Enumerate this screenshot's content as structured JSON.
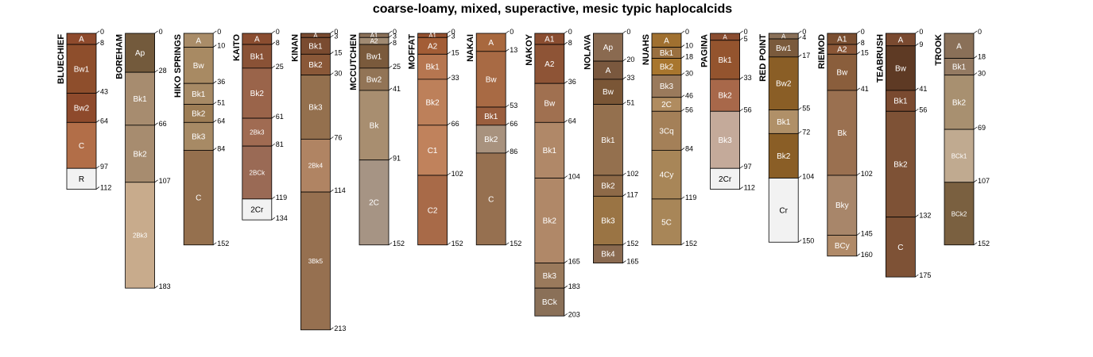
{
  "chart_data": {
    "type": "soil-profile-sketch",
    "title": "coarse-loamy, mixed, superactive, mesic typic haplocalcids",
    "depth_unit": "cm",
    "max_depth": 213,
    "profiles": [
      {
        "name": "BLUECHIEF",
        "horizons": [
          {
            "name": "A",
            "top": 0,
            "bottom": 8,
            "color": "#8e4a2c"
          },
          {
            "name": "Bw1",
            "top": 8,
            "bottom": 43,
            "color": "#8e4e2c"
          },
          {
            "name": "Bw2",
            "top": 43,
            "bottom": 64,
            "color": "#8e4a2c"
          },
          {
            "name": "C",
            "top": 64,
            "bottom": 97,
            "color": "#b26e48"
          },
          {
            "name": "R",
            "top": 97,
            "bottom": 112,
            "color": "#f2f2f2"
          }
        ]
      },
      {
        "name": "BOREHAM",
        "horizons": [
          {
            "name": "Ap",
            "top": 0,
            "bottom": 28,
            "color": "#735a3c"
          },
          {
            "name": "Bk1",
            "top": 28,
            "bottom": 66,
            "color": "#a78c6f"
          },
          {
            "name": "Bk2",
            "top": 66,
            "bottom": 107,
            "color": "#a78c6f"
          },
          {
            "name": "2Bk3",
            "top": 107,
            "bottom": 183,
            "color": "#c8ab8c"
          }
        ]
      },
      {
        "name": "HIKO SPRINGS",
        "horizons": [
          {
            "name": "A",
            "top": 0,
            "bottom": 10,
            "color": "#a98c68"
          },
          {
            "name": "Bw",
            "top": 10,
            "bottom": 36,
            "color": "#a88a63"
          },
          {
            "name": "Bk1",
            "top": 36,
            "bottom": 51,
            "color": "#a78a65"
          },
          {
            "name": "Bk2",
            "top": 51,
            "bottom": 64,
            "color": "#9d7d55"
          },
          {
            "name": "Bk3",
            "top": 64,
            "bottom": 84,
            "color": "#a78a65"
          },
          {
            "name": "C",
            "top": 84,
            "bottom": 152,
            "color": "#95704e"
          }
        ]
      },
      {
        "name": "KAITO",
        "horizons": [
          {
            "name": "A",
            "top": 0,
            "bottom": 8,
            "color": "#8a4d30"
          },
          {
            "name": "Bk1",
            "top": 8,
            "bottom": 25,
            "color": "#8a5236"
          },
          {
            "name": "Bk2",
            "top": 25,
            "bottom": 61,
            "color": "#9a644a"
          },
          {
            "name": "2Bk3",
            "top": 61,
            "bottom": 81,
            "color": "#a06b52"
          },
          {
            "name": "2BCk",
            "top": 81,
            "bottom": 119,
            "color": "#9a6a55"
          },
          {
            "name": "2Cr",
            "top": 119,
            "bottom": 134,
            "color": "#f2f2f2"
          }
        ]
      },
      {
        "name": "KINAN",
        "horizons": [
          {
            "name": "A",
            "top": 0,
            "bottom": 3,
            "color": "#7a4b30"
          },
          {
            "name": "Bk1",
            "top": 3,
            "bottom": 15,
            "color": "#7a4b30"
          },
          {
            "name": "Bk2",
            "top": 15,
            "bottom": 30,
            "color": "#8a5838"
          },
          {
            "name": "Bk3",
            "top": 30,
            "bottom": 76,
            "color": "#94704e"
          },
          {
            "name": "2Bk4",
            "top": 76,
            "bottom": 114,
            "color": "#b08463"
          },
          {
            "name": "3Bk5",
            "top": 114,
            "bottom": 213,
            "color": "#967050"
          }
        ]
      },
      {
        "name": "MCCUTCHEN",
        "horizons": [
          {
            "name": "A1",
            "top": 0,
            "bottom": 3,
            "color": "#8a7058"
          },
          {
            "name": "A2",
            "top": 3,
            "bottom": 8,
            "color": "#a08a72"
          },
          {
            "name": "Bw1",
            "top": 8,
            "bottom": 25,
            "color": "#7a5a3c"
          },
          {
            "name": "Bw2",
            "top": 25,
            "bottom": 41,
            "color": "#927456"
          },
          {
            "name": "Bk",
            "top": 41,
            "bottom": 91,
            "color": "#a88e70"
          },
          {
            "name": "2C",
            "top": 91,
            "bottom": 152,
            "color": "#a69484"
          }
        ]
      },
      {
        "name": "MOFFAT",
        "horizons": [
          {
            "name": "A1",
            "top": 0,
            "bottom": 3,
            "color": "#94502e"
          },
          {
            "name": "A2",
            "top": 3,
            "bottom": 15,
            "color": "#a35d36"
          },
          {
            "name": "Bk1",
            "top": 15,
            "bottom": 33,
            "color": "#b67650"
          },
          {
            "name": "Bk2",
            "top": 33,
            "bottom": 66,
            "color": "#bd805a"
          },
          {
            "name": "C1",
            "top": 66,
            "bottom": 102,
            "color": "#c0825c"
          },
          {
            "name": "C2",
            "top": 102,
            "bottom": 152,
            "color": "#a86a48"
          }
        ]
      },
      {
        "name": "NAKAI",
        "horizons": [
          {
            "name": "A",
            "top": 0,
            "bottom": 13,
            "color": "#a8683e"
          },
          {
            "name": "Bw",
            "top": 13,
            "bottom": 53,
            "color": "#a86a44"
          },
          {
            "name": "Bk1",
            "top": 53,
            "bottom": 66,
            "color": "#9a5e3e"
          },
          {
            "name": "Bk2",
            "top": 66,
            "bottom": 86,
            "color": "#a8927e"
          },
          {
            "name": "C",
            "top": 86,
            "bottom": 152,
            "color": "#967050"
          }
        ]
      },
      {
        "name": "NAKOY",
        "horizons": [
          {
            "name": "A1",
            "top": 0,
            "bottom": 8,
            "color": "#8a4d30"
          },
          {
            "name": "A2",
            "top": 8,
            "bottom": 36,
            "color": "#8e5436"
          },
          {
            "name": "Bw",
            "top": 36,
            "bottom": 64,
            "color": "#a07050"
          },
          {
            "name": "Bk1",
            "top": 64,
            "bottom": 104,
            "color": "#b08868"
          },
          {
            "name": "Bk2",
            "top": 104,
            "bottom": 165,
            "color": "#b08868"
          },
          {
            "name": "Bk3",
            "top": 165,
            "bottom": 183,
            "color": "#9a7a5c"
          },
          {
            "name": "BCk",
            "top": 183,
            "bottom": 203,
            "color": "#8a7058"
          }
        ]
      },
      {
        "name": "NOLAVA",
        "horizons": [
          {
            "name": "Ap",
            "top": 0,
            "bottom": 20,
            "color": "#8a6a50"
          },
          {
            "name": "A",
            "top": 20,
            "bottom": 33,
            "color": "#7a583e"
          },
          {
            "name": "Bw",
            "top": 33,
            "bottom": 51,
            "color": "#7a5636"
          },
          {
            "name": "Bk1",
            "top": 51,
            "bottom": 102,
            "color": "#94704e"
          },
          {
            "name": "Bk2",
            "top": 102,
            "bottom": 117,
            "color": "#8e6a48"
          },
          {
            "name": "Bk3",
            "top": 117,
            "bottom": 152,
            "color": "#9a7444"
          },
          {
            "name": "Bk4",
            "top": 152,
            "bottom": 165,
            "color": "#8a6a50"
          }
        ]
      },
      {
        "name": "NUAHS",
        "horizons": [
          {
            "name": "A",
            "top": 0,
            "bottom": 10,
            "color": "#a07030"
          },
          {
            "name": "Bk1",
            "top": 10,
            "bottom": 18,
            "color": "#9a7040"
          },
          {
            "name": "Bk2",
            "top": 18,
            "bottom": 30,
            "color": "#a8762e"
          },
          {
            "name": "Bk3",
            "top": 30,
            "bottom": 46,
            "color": "#9a7a5c"
          },
          {
            "name": "2C",
            "top": 46,
            "bottom": 56,
            "color": "#b08c60"
          },
          {
            "name": "3Cq",
            "top": 56,
            "bottom": 84,
            "color": "#a48058"
          },
          {
            "name": "4Cy",
            "top": 84,
            "bottom": 119,
            "color": "#a88658"
          },
          {
            "name": "5C",
            "top": 119,
            "bottom": 152,
            "color": "#a88658"
          }
        ]
      },
      {
        "name": "PAGINA",
        "horizons": [
          {
            "name": "A",
            "top": 0,
            "bottom": 5,
            "color": "#8a4d30"
          },
          {
            "name": "Bk1",
            "top": 5,
            "bottom": 33,
            "color": "#94542e"
          },
          {
            "name": "Bk2",
            "top": 33,
            "bottom": 56,
            "color": "#a8684a"
          },
          {
            "name": "Bk3",
            "top": 56,
            "bottom": 97,
            "color": "#c4aa9a"
          },
          {
            "name": "2Cr",
            "top": 97,
            "bottom": 112,
            "color": "#f2f2f2"
          }
        ]
      },
      {
        "name": "RED POINT",
        "horizons": [
          {
            "name": "A",
            "top": 0,
            "bottom": 4,
            "color": "#8a7058"
          },
          {
            "name": "Bw1",
            "top": 4,
            "bottom": 17,
            "color": "#7a5a3c"
          },
          {
            "name": "Bw2",
            "top": 17,
            "bottom": 55,
            "color": "#8a5e26"
          },
          {
            "name": "Bk1",
            "top": 55,
            "bottom": 72,
            "color": "#b09068"
          },
          {
            "name": "Bk2",
            "top": 72,
            "bottom": 104,
            "color": "#8a5e26"
          },
          {
            "name": "Cr",
            "top": 104,
            "bottom": 150,
            "color": "#f2f2f2"
          }
        ]
      },
      {
        "name": "RIEMOD",
        "horizons": [
          {
            "name": "A1",
            "top": 0,
            "bottom": 8,
            "color": "#7a4e30"
          },
          {
            "name": "A2",
            "top": 8,
            "bottom": 15,
            "color": "#8a5636"
          },
          {
            "name": "Bw",
            "top": 15,
            "bottom": 41,
            "color": "#8a5e3c"
          },
          {
            "name": "Bk",
            "top": 41,
            "bottom": 102,
            "color": "#9a7050"
          },
          {
            "name": "Bky",
            "top": 102,
            "bottom": 145,
            "color": "#a8866a"
          },
          {
            "name": "BCy",
            "top": 145,
            "bottom": 160,
            "color": "#b08a68"
          }
        ]
      },
      {
        "name": "TEABRUSH",
        "horizons": [
          {
            "name": "A",
            "top": 0,
            "bottom": 9,
            "color": "#7a4a30"
          },
          {
            "name": "Bw",
            "top": 9,
            "bottom": 41,
            "color": "#5e3a24"
          },
          {
            "name": "Bk1",
            "top": 41,
            "bottom": 56,
            "color": "#7a4a30"
          },
          {
            "name": "Bk2",
            "top": 56,
            "bottom": 132,
            "color": "#7e5236"
          },
          {
            "name": "C",
            "top": 132,
            "bottom": 175,
            "color": "#7e5236"
          }
        ]
      },
      {
        "name": "TROOK",
        "horizons": [
          {
            "name": "A",
            "top": 0,
            "bottom": 18,
            "color": "#8a7058"
          },
          {
            "name": "Bk1",
            "top": 18,
            "bottom": 30,
            "color": "#947a62"
          },
          {
            "name": "Bk2",
            "top": 30,
            "bottom": 69,
            "color": "#a89070"
          },
          {
            "name": "BCk1",
            "top": 69,
            "bottom": 107,
            "color": "#c0aa90"
          },
          {
            "name": "BCk2",
            "top": 107,
            "bottom": 152,
            "color": "#7a6040"
          }
        ]
      }
    ]
  }
}
